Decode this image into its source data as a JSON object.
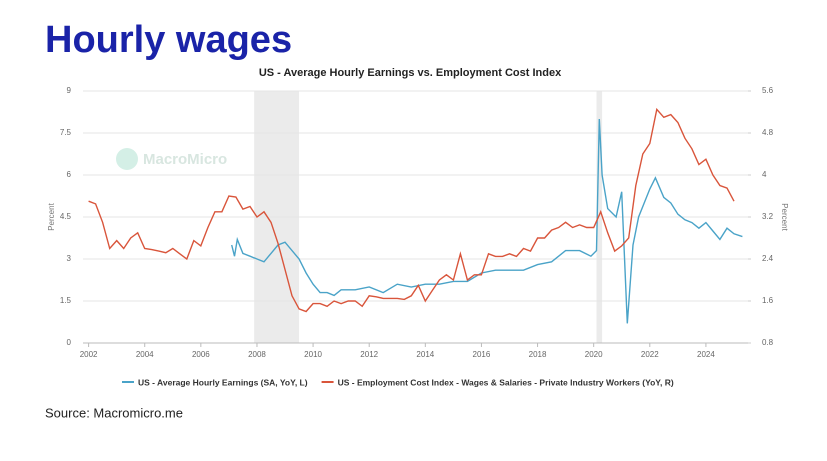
{
  "heading": "Hourly wages",
  "source": "Source: Macromicro.me",
  "chart_data": {
    "type": "line",
    "title": "US - Average Hourly Earnings vs. Employment Cost Index",
    "watermark": "MacroMicro",
    "ylabel": "Percent",
    "y2label": "Percent",
    "xlim": [
      2001.8,
      2025.5
    ],
    "xticks": [
      2002,
      2004,
      2006,
      2008,
      2010,
      2012,
      2014,
      2016,
      2018,
      2020,
      2022,
      2024
    ],
    "ylim": [
      0,
      9
    ],
    "yticks": [
      0,
      1.5,
      3,
      4.5,
      6,
      7.5,
      9
    ],
    "y2lim": [
      0.8,
      5.6
    ],
    "y2ticks": [
      0.8,
      1.6,
      2.4,
      3.2,
      4,
      4.8,
      5.6
    ],
    "grid": true,
    "shaded_ranges": [
      [
        2007.9,
        2009.5
      ],
      [
        2020.1,
        2020.3
      ]
    ],
    "series": [
      {
        "name": "US - Average Hourly Earnings (SA, YoY, L)",
        "color": "#4aa3c8",
        "axis": "y",
        "x": [
          2007.1,
          2007.2,
          2007.3,
          2007.5,
          2007.75,
          2008,
          2008.25,
          2008.5,
          2008.75,
          2009,
          2009.25,
          2009.5,
          2009.75,
          2010,
          2010.25,
          2010.5,
          2010.75,
          2011,
          2011.5,
          2012,
          2012.5,
          2013,
          2013.5,
          2014,
          2014.5,
          2015,
          2015.5,
          2016,
          2016.5,
          2017,
          2017.5,
          2018,
          2018.5,
          2019,
          2019.5,
          2019.9,
          2020.1,
          2020.2,
          2020.3,
          2020.5,
          2020.8,
          2021,
          2021.2,
          2021.4,
          2021.6,
          2021.8,
          2022,
          2022.2,
          2022.5,
          2022.75,
          2023,
          2023.25,
          2023.5,
          2023.75,
          2024,
          2024.25,
          2024.5,
          2024.75,
          2025,
          2025.3
        ],
        "values": [
          3.5,
          3.1,
          3.7,
          3.2,
          3.1,
          3.0,
          2.9,
          3.2,
          3.5,
          3.6,
          3.3,
          3.0,
          2.5,
          2.1,
          1.8,
          1.8,
          1.7,
          1.9,
          1.9,
          2.0,
          1.8,
          2.1,
          2.0,
          2.1,
          2.1,
          2.2,
          2.2,
          2.5,
          2.6,
          2.6,
          2.6,
          2.8,
          2.9,
          3.3,
          3.3,
          3.1,
          3.3,
          8.0,
          6.0,
          4.8,
          4.5,
          5.4,
          0.7,
          3.5,
          4.5,
          5.0,
          5.5,
          5.9,
          5.2,
          5.0,
          4.6,
          4.4,
          4.3,
          4.1,
          4.3,
          4.0,
          3.7,
          4.1,
          3.9,
          3.8
        ]
      },
      {
        "name": "US - Employment Cost Index - Wages & Salaries - Private Industry Workers (YoY, R)",
        "color": "#d9553b",
        "axis": "y2",
        "x": [
          2002,
          2002.25,
          2002.5,
          2002.75,
          2003,
          2003.25,
          2003.5,
          2003.75,
          2004,
          2004.25,
          2004.5,
          2004.75,
          2005,
          2005.25,
          2005.5,
          2005.75,
          2006,
          2006.25,
          2006.5,
          2006.75,
          2007,
          2007.25,
          2007.5,
          2007.75,
          2008,
          2008.25,
          2008.5,
          2008.75,
          2009,
          2009.25,
          2009.5,
          2009.75,
          2010,
          2010.25,
          2010.5,
          2010.75,
          2011,
          2011.25,
          2011.5,
          2011.75,
          2012,
          2012.25,
          2012.5,
          2012.75,
          2013,
          2013.25,
          2013.5,
          2013.75,
          2014,
          2014.25,
          2014.5,
          2014.75,
          2015,
          2015.25,
          2015.5,
          2015.75,
          2016,
          2016.25,
          2016.5,
          2016.75,
          2017,
          2017.25,
          2017.5,
          2017.75,
          2018,
          2018.25,
          2018.5,
          2018.75,
          2019,
          2019.25,
          2019.5,
          2019.75,
          2020,
          2020.25,
          2020.5,
          2020.75,
          2021,
          2021.25,
          2021.5,
          2021.75,
          2022,
          2022.25,
          2022.5,
          2022.75,
          2023,
          2023.25,
          2023.5,
          2023.75,
          2024,
          2024.25,
          2024.5,
          2024.75,
          2025
        ],
        "values": [
          3.5,
          3.45,
          3.1,
          2.6,
          2.75,
          2.6,
          2.8,
          2.9,
          2.6,
          2.58,
          2.55,
          2.52,
          2.6,
          2.5,
          2.4,
          2.75,
          2.65,
          3.0,
          3.3,
          3.3,
          3.6,
          3.58,
          3.35,
          3.4,
          3.2,
          3.3,
          3.1,
          2.7,
          2.2,
          1.7,
          1.45,
          1.4,
          1.55,
          1.55,
          1.5,
          1.6,
          1.55,
          1.6,
          1.6,
          1.5,
          1.7,
          1.68,
          1.65,
          1.65,
          1.65,
          1.63,
          1.7,
          1.9,
          1.6,
          1.8,
          2.0,
          2.1,
          2.0,
          2.5,
          2.0,
          2.1,
          2.1,
          2.5,
          2.45,
          2.45,
          2.5,
          2.45,
          2.6,
          2.55,
          2.8,
          2.8,
          2.95,
          3.0,
          3.1,
          3.0,
          3.05,
          3.0,
          3.0,
          3.3,
          2.9,
          2.55,
          2.65,
          2.8,
          3.8,
          4.4,
          4.6,
          5.25,
          5.1,
          5.15,
          5.0,
          4.7,
          4.5,
          4.2,
          4.3,
          4.0,
          3.8,
          3.75,
          3.5
        ]
      }
    ]
  }
}
